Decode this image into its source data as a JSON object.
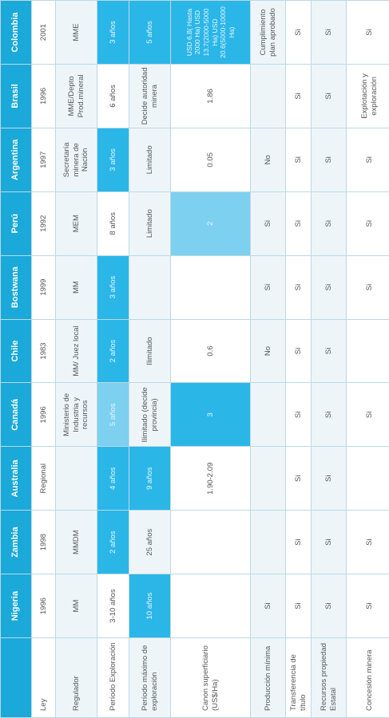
{
  "header": [
    "",
    "Nigeria",
    "Zambia",
    "Australia",
    "Canadá",
    "Chile",
    "Bostwana",
    "Perú",
    "Argentina",
    "Brasil",
    "Colombia"
  ],
  "rows": [
    {
      "label": "Ley",
      "cells": [
        "1996",
        "1998",
        "Regional",
        "1996",
        "1983",
        "1999",
        "1992",
        "1997",
        "1996",
        "2001"
      ]
    },
    {
      "label": "Regulador",
      "cells": [
        "MM",
        "MMDM",
        "",
        "Ministerio de Industria y recursos",
        "MM/ Juez local",
        "MM",
        "MEM",
        "Secretaría minera de Nación",
        "MME/Depto Prod.mineral",
        "MME"
      ]
    },
    {
      "label": "Período Exploración",
      "cells": [
        "3-10 años",
        "2 años",
        "4 años",
        "5 años",
        "2 años",
        "3 años",
        "8 años",
        "3 años",
        "6 años",
        "3 años"
      ]
    },
    {
      "label": "Período máximo de exploración",
      "cells": [
        "10 años",
        "25 años",
        "9 años",
        "Ilimitado (decide provincia)",
        "Ilimitado",
        "",
        "Limitado",
        "Limitado",
        "Decide autoridad minera",
        "5 años"
      ]
    },
    {
      "label": "Canon superficiario (US$/Ha)",
      "cells": [
        "",
        "",
        "1.90-2.09",
        "3",
        "0.6",
        "",
        "2",
        "0.05",
        "1.86",
        "USD 6.8( Hasta 2000 Ha) USD 13.7(2000-5000 Ha) USD 20.6(5000-10000 Ha)"
      ]
    },
    {
      "label": "Producción mínima",
      "cells": [
        "Si",
        "",
        "",
        "",
        "No",
        "Si",
        "Si",
        "No",
        "",
        "Cumplimiento plan aprobado"
      ]
    },
    {
      "label": "Transferencia de título",
      "cells": [
        "Si",
        "Si",
        "Si",
        "Si",
        "Si",
        "Si",
        "Si",
        "Si",
        "Si",
        "Si"
      ]
    },
    {
      "label": "Recursos propiedad Estatal",
      "cells": [
        "Si",
        "Si",
        "Si",
        "Si",
        "Si",
        "Si",
        "Si",
        "Si",
        "Si",
        "Si"
      ]
    },
    {
      "label": "Concesión minera",
      "cells": [
        "Si",
        "Si",
        "",
        "Si",
        "",
        "Si",
        "Si",
        "Si",
        "Explotación y exploración",
        "Si"
      ]
    }
  ],
  "colors": {
    "header": "#1aa9d8",
    "highlight_dark": "#2bb6e8",
    "highlight_light": "#7dd0ef",
    "row_alt": "#eef5f9"
  }
}
